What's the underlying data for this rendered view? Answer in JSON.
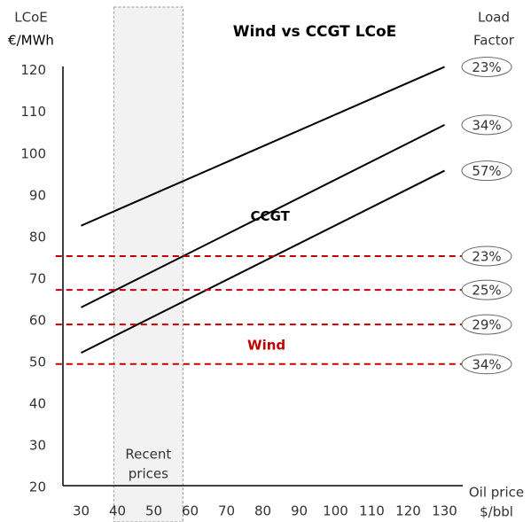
{
  "chart_data": {
    "type": "line",
    "title": "Wind vs CCGT LCoE",
    "y_label": [
      "LCoE",
      "€/MWh"
    ],
    "x_label": [
      "Oil price",
      "$/bbl"
    ],
    "legend_title": [
      "Load",
      "Factor"
    ],
    "xlim": [
      25,
      135
    ],
    "xticks": [
      30,
      40,
      50,
      60,
      70,
      80,
      90,
      100,
      110,
      120,
      130
    ],
    "ylim": [
      20,
      121
    ],
    "yticks": [
      20,
      30,
      40,
      50,
      60,
      70,
      80,
      90,
      100,
      110,
      120
    ],
    "grid": false,
    "shade": {
      "x": [
        39,
        58
      ],
      "label": [
        "Recent",
        "prices"
      ],
      "color": "#f2f2f2"
    },
    "annotations": [
      {
        "text": "CCGT",
        "x": 82,
        "y": 85,
        "color": "#000000"
      },
      {
        "text": "Wind",
        "x": 81,
        "y": 54,
        "color": "#c00000"
      }
    ],
    "series": [
      {
        "name": "23%",
        "color": "#000000",
        "style": "solid",
        "x": [
          30,
          130
        ],
        "values": [
          82.8,
          120.9
        ]
      },
      {
        "name": "34%",
        "color": "#000000",
        "style": "solid",
        "x": [
          30,
          130
        ],
        "values": [
          63.2,
          107
        ]
      },
      {
        "name": "57%",
        "color": "#000000",
        "style": "solid",
        "x": [
          30,
          130
        ],
        "values": [
          52.3,
          96
        ]
      },
      {
        "name": "23%",
        "color": "#c00000",
        "style": "dashed",
        "x": [
          23,
          135
        ],
        "values": [
          75.5,
          75.5
        ]
      },
      {
        "name": "25%",
        "color": "#c00000",
        "style": "dashed",
        "x": [
          23,
          135
        ],
        "values": [
          67.4,
          67.4
        ]
      },
      {
        "name": "29%",
        "color": "#c00000",
        "style": "dashed",
        "x": [
          23,
          135
        ],
        "values": [
          59.1,
          59.1
        ]
      },
      {
        "name": "34%",
        "color": "#c00000",
        "style": "dashed",
        "x": [
          23,
          135
        ],
        "values": [
          49.6,
          49.6
        ]
      }
    ]
  }
}
